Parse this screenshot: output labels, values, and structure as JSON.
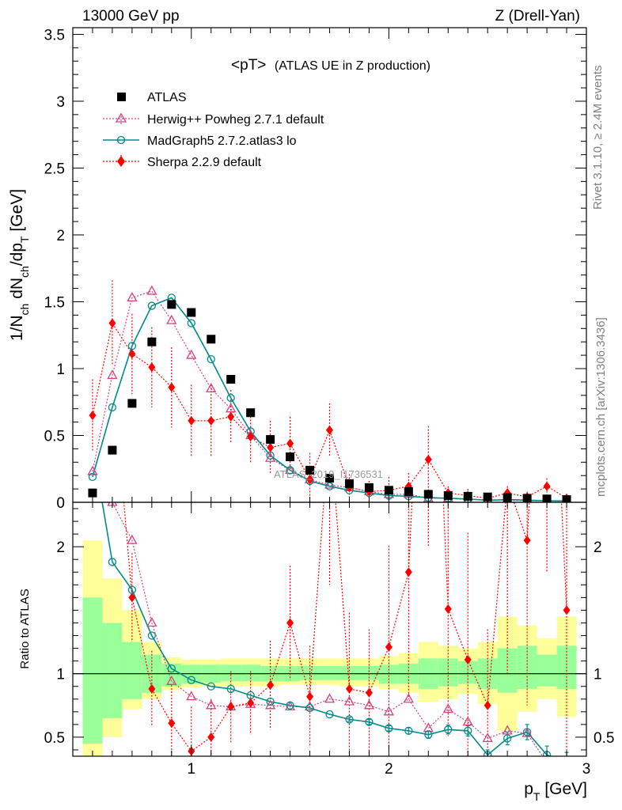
{
  "header": {
    "left": "13000 GeV pp",
    "right": "Z (Drell-Yan)"
  },
  "side_labels": {
    "rivet": "Rivet 3.1.10, ≥ 2.4M events",
    "mcplots": "mcplots.cern.ch [arXiv:1306.3436]"
  },
  "watermark": "ATLAS_2019_I1736531",
  "chart_data": {
    "type": "scatter",
    "title_main": "<pT>",
    "title_sub": "(ATLAS UE in Z production)",
    "xlabel": "p_T [GeV]",
    "ylabel": "1/N_ch dN_ch/dp_T [GeV]",
    "ratio_ylabel": "Ratio to ATLAS",
    "xlim": [
      0.4,
      3.0
    ],
    "ylim": [
      0,
      3.55
    ],
    "ratio_ylim": [
      0.35,
      2.35
    ],
    "x_ticks": [
      1,
      2,
      3
    ],
    "x_tick_labels": [
      "1",
      "2",
      "3"
    ],
    "y_ticks": [
      0,
      0.5,
      1,
      1.5,
      2,
      2.5,
      3,
      3.5
    ],
    "y_tick_labels": [
      "0",
      "0.5",
      "1",
      "1.5",
      "2",
      "2.5",
      "3",
      "3.5"
    ],
    "ratio_ticks": [
      0.5,
      1,
      2
    ],
    "ratio_tick_labels": [
      "0.5",
      "1",
      "2"
    ],
    "x": [
      0.5,
      0.6,
      0.7,
      0.8,
      0.9,
      1.0,
      1.1,
      1.2,
      1.3,
      1.4,
      1.5,
      1.6,
      1.7,
      1.8,
      1.9,
      2.0,
      2.1,
      2.2,
      2.3,
      2.4,
      2.5,
      2.6,
      2.7,
      2.8,
      2.9
    ],
    "bin_edges": [
      0.45,
      0.55,
      0.65,
      0.75,
      0.85,
      0.95,
      1.05,
      1.15,
      1.25,
      1.35,
      1.45,
      1.55,
      1.65,
      1.75,
      1.85,
      1.95,
      2.05,
      2.15,
      2.25,
      2.35,
      2.45,
      2.55,
      2.65,
      2.75,
      2.85,
      2.95
    ],
    "series": [
      {
        "name": "ATLAS",
        "style": "data",
        "color": "#000000",
        "values": [
          0.07,
          0.39,
          0.74,
          1.2,
          1.48,
          1.42,
          1.22,
          0.92,
          0.67,
          0.47,
          0.34,
          0.24,
          0.18,
          0.14,
          0.11,
          0.09,
          0.08,
          0.06,
          0.05,
          0.045,
          0.04,
          0.035,
          0.03,
          0.025,
          0.02
        ]
      },
      {
        "name": "Herwig++ Powheg 2.7.1 default",
        "style": "herwig",
        "color": "#d64080",
        "values": [
          0.23,
          0.95,
          1.53,
          1.58,
          1.36,
          1.1,
          0.85,
          0.7,
          0.5,
          0.33,
          0.24,
          0.17,
          0.13,
          0.11,
          0.08,
          0.06,
          0.06,
          0.03,
          0.03,
          0.02,
          0.02,
          0.015,
          0.012,
          0.01,
          0.008
        ]
      },
      {
        "name": "MadGraph5 2.7.2.atlas3 lo",
        "style": "madgraph",
        "color": "#008b8b",
        "values": [
          0.19,
          0.71,
          1.17,
          1.47,
          1.53,
          1.34,
          1.07,
          0.78,
          0.53,
          0.35,
          0.24,
          0.16,
          0.12,
          0.09,
          0.07,
          0.05,
          0.045,
          0.035,
          0.03,
          0.025,
          0.015,
          0.02,
          0.016,
          0.012,
          0.01
        ],
        "ratio_errors": [
          0.01,
          0.01,
          0.01,
          0.01,
          0.01,
          0.01,
          0.01,
          0.01,
          0.01,
          0.01,
          0.01,
          0.01,
          0.01,
          0.015,
          0.02,
          0.02,
          0.025,
          0.03,
          0.035,
          0.04,
          0.04,
          0.05,
          0.06,
          0.07,
          0.08
        ]
      },
      {
        "name": "Sherpa 2.2.9 default",
        "style": "sherpa",
        "color": "#ff0000",
        "values": [
          0.65,
          1.34,
          1.11,
          1.01,
          0.86,
          0.61,
          0.61,
          0.64,
          0.49,
          0.41,
          0.44,
          0.17,
          0.54,
          0.11,
          0.08,
          0.09,
          0.12,
          0.32,
          0.07,
          0.05,
          0.03,
          0.07,
          0.04,
          0.12,
          0.03
        ],
        "errors": [
          0.27,
          0.32,
          0.3,
          0.3,
          0.3,
          0.27,
          0.27,
          0.2,
          0.2,
          0.2,
          0.2,
          0.2,
          0.2,
          0.1,
          0.08,
          0.1,
          0.1,
          0.25,
          0.05,
          0.05,
          0.04,
          0.05,
          0.04,
          0.06,
          0.03
        ]
      }
    ],
    "ratios": {
      "herwig": [
        3.3,
        2.35,
        2.05,
        1.4,
        0.94,
        0.82,
        0.75,
        0.74,
        0.76,
        0.75,
        0.74,
        0.74,
        0.8,
        0.78,
        0.75,
        0.7,
        0.8,
        0.57,
        0.72,
        0.62,
        0.49,
        0.55,
        0.53,
        0.3,
        0.25
      ],
      "madgraph": [
        2.8,
        1.88,
        1.66,
        1.3,
        1.04,
        0.95,
        0.9,
        0.88,
        0.83,
        0.78,
        0.75,
        0.73,
        0.68,
        0.64,
        0.62,
        0.57,
        0.55,
        0.52,
        0.56,
        0.55,
        0.36,
        0.49,
        0.54,
        0.36,
        0.3
      ],
      "sherpa": [
        4.0,
        3.4,
        1.6,
        0.88,
        0.61,
        0.39,
        0.5,
        0.74,
        0.77,
        0.91,
        1.4,
        0.82,
        3.0,
        0.88,
        0.85,
        1.21,
        1.8,
        5.0,
        1.51,
        1.11,
        0.75,
        2.5,
        2.05,
        4.8,
        1.5
      ],
      "sherpa_errors": [
        0.3,
        0.3,
        0.35,
        0.3,
        0.3,
        0.35,
        0.3,
        0.28,
        0.25,
        0.35,
        0.45,
        0.4,
        1.3,
        0.6,
        0.5,
        0.8,
        1.0,
        3.0,
        1.0,
        1.0,
        0.6,
        1.5,
        1.3,
        3.0,
        1.2
      ]
    },
    "bands": {
      "green_lo": [
        0.45,
        0.65,
        0.8,
        0.85,
        0.9,
        0.92,
        0.93,
        0.94,
        0.94,
        0.94,
        0.94,
        0.95,
        0.95,
        0.95,
        0.95,
        0.92,
        0.92,
        0.88,
        0.9,
        0.92,
        0.88,
        0.85,
        0.88,
        0.9,
        0.88
      ],
      "green_hi": [
        1.6,
        1.4,
        1.25,
        1.15,
        1.08,
        1.07,
        1.07,
        1.07,
        1.07,
        1.06,
        1.06,
        1.06,
        1.06,
        1.06,
        1.06,
        1.07,
        1.08,
        1.12,
        1.12,
        1.1,
        1.12,
        1.2,
        1.22,
        1.15,
        1.22
      ],
      "yellow_lo": [
        0.35,
        0.5,
        0.72,
        0.8,
        0.87,
        0.89,
        0.9,
        0.9,
        0.9,
        0.9,
        0.91,
        0.91,
        0.91,
        0.9,
        0.9,
        0.88,
        0.85,
        0.78,
        0.8,
        0.84,
        0.76,
        0.55,
        0.7,
        0.8,
        0.66
      ],
      "yellow_hi": [
        2.05,
        1.75,
        1.5,
        1.25,
        1.13,
        1.11,
        1.11,
        1.12,
        1.12,
        1.12,
        1.12,
        1.12,
        1.12,
        1.12,
        1.12,
        1.14,
        1.16,
        1.25,
        1.22,
        1.2,
        1.25,
        1.45,
        1.38,
        1.28,
        1.45
      ]
    },
    "legend": [
      "ATLAS",
      "Herwig++ Powheg 2.7.1 default",
      "MadGraph5 2.7.2.atlas3 lo",
      "Sherpa 2.2.9 default"
    ],
    "legend_position": "top-left"
  }
}
